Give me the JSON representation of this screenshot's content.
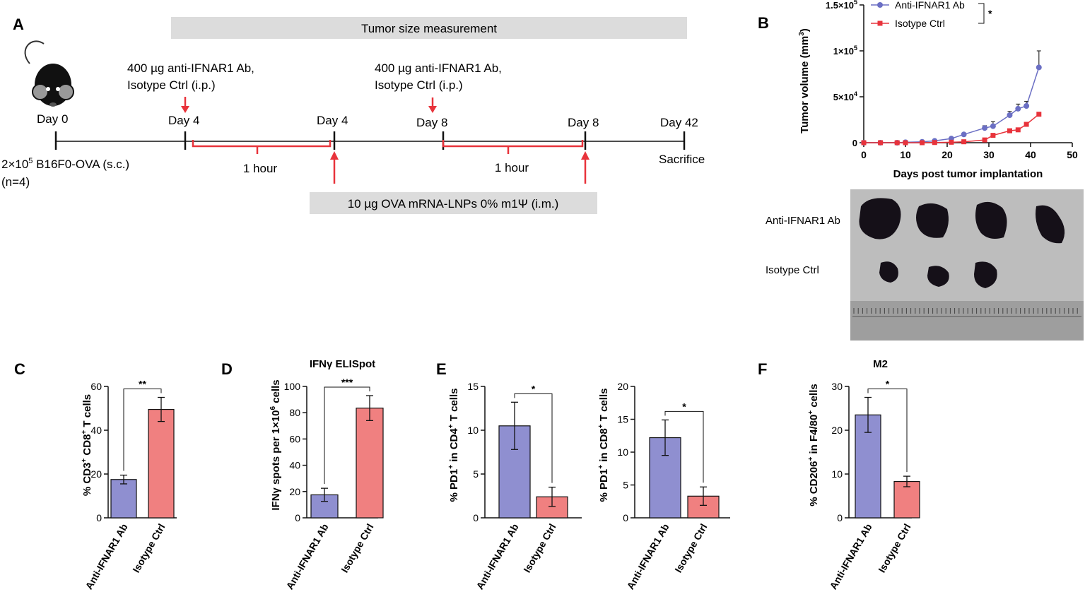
{
  "panels": {
    "A": "A",
    "B": "B",
    "C": "C",
    "D": "D",
    "E": "E",
    "F": "F"
  },
  "timeline": {
    "measure_bar": "Tumor size measurement",
    "inject_top_1": "400 µg anti-IFNAR1 Ab,",
    "inject_top_2": "Isotype Ctrl (i.p.)",
    "days": [
      "Day 0",
      "Day 4",
      "Day 4",
      "Day 8",
      "Day 8",
      "Day 42"
    ],
    "interval": "1 hour",
    "implant_1": "2×10",
    "implant_sup": "5",
    "implant_2": " B16F0-OVA (s.c.)",
    "implant_n": "(n=4)",
    "sacrifice": "Sacrifice",
    "vaccine_bar": "10 µg OVA mRNA-LNPs 0% m1Ψ (i.m.)"
  },
  "colors": {
    "blue": "#6b6fc4",
    "blue_fill": "#8f8fd0",
    "red": "#e8333b",
    "red_fill": "#f08080",
    "gray_bar": "#dcdcdc",
    "photo_bg": "#bdbdbd"
  },
  "photo": {
    "row1": "Anti-IFNAR1 Ab",
    "row2": "Isotype Ctrl"
  },
  "chart_data": [
    {
      "id": "B",
      "type": "line",
      "title": "",
      "xlabel": "Days post tumor implantation",
      "ylabel": "Tumor volume (mm3)",
      "xlim": [
        0,
        50
      ],
      "ylim": [
        0,
        150000
      ],
      "xticks": [
        "0",
        "10",
        "20",
        "30",
        "40",
        "50"
      ],
      "yticks": [
        "0",
        "5×10",
        "1×10",
        "1.5×10"
      ],
      "ytick_exp": [
        "",
        "4",
        "5",
        "5"
      ],
      "legend": [
        "Anti-IFNAR1 Ab",
        "Isotype Ctrl"
      ],
      "significance": "*",
      "series": [
        {
          "name": "Anti-IFNAR1 Ab",
          "x": [
            0,
            4,
            8,
            10,
            14,
            17,
            21,
            24,
            29,
            31,
            35,
            37,
            39,
            42
          ],
          "y": [
            0,
            0,
            0,
            500,
            1000,
            2000,
            4500,
            9000,
            16000,
            18000,
            30000,
            37000,
            40000,
            82000
          ],
          "err": [
            0,
            0,
            0,
            300,
            500,
            700,
            1000,
            1500,
            2500,
            5000,
            4000,
            5000,
            5000,
            18000
          ]
        },
        {
          "name": "Isotype Ctrl",
          "x": [
            0,
            4,
            8,
            10,
            14,
            17,
            21,
            24,
            29,
            31,
            35,
            37,
            39,
            42
          ],
          "y": [
            0,
            0,
            0,
            0,
            0,
            200,
            500,
            1000,
            3000,
            8000,
            13000,
            14000,
            20000,
            31000
          ],
          "err": [
            0,
            0,
            0,
            0,
            0,
            100,
            200,
            300,
            800,
            1500,
            1500,
            1500,
            1500,
            2000
          ]
        }
      ]
    },
    {
      "id": "C",
      "type": "bar",
      "title": "",
      "ylabel": "% CD3+ CD8+ T cells",
      "categories": [
        "Anti-IFNAR1 Ab",
        "Isotype Ctrl"
      ],
      "values": [
        17.5,
        49.5
      ],
      "err": [
        2,
        5.5
      ],
      "ylim": [
        0,
        60
      ],
      "yticks": [
        "0",
        "20",
        "40",
        "60"
      ],
      "significance": "**"
    },
    {
      "id": "D",
      "type": "bar",
      "title": "IFNγ ELISpot",
      "ylabel": "IFNγ spots per 1×10^6 cells",
      "categories": [
        "Anti-IFNAR1 Ab",
        "Isotype Ctrl"
      ],
      "values": [
        17.5,
        83.5
      ],
      "err": [
        5,
        9.5
      ],
      "ylim": [
        0,
        100
      ],
      "yticks": [
        "0",
        "20",
        "40",
        "60",
        "80",
        "100"
      ],
      "significance": "***"
    },
    {
      "id": "E1",
      "type": "bar",
      "title": "",
      "ylabel": "% PD1+ in CD4+ T cells",
      "categories": [
        "Anti-IFNAR1 Ab",
        "Isotype Ctrl"
      ],
      "values": [
        10.5,
        2.4
      ],
      "err": [
        2.7,
        1.1
      ],
      "ylim": [
        0,
        15
      ],
      "yticks": [
        "0",
        "5",
        "10",
        "15"
      ],
      "significance": "*"
    },
    {
      "id": "E2",
      "type": "bar",
      "title": "",
      "ylabel": "% PD1+ in CD8+ T cells",
      "categories": [
        "Anti-IFNAR1 Ab",
        "Isotype Ctrl"
      ],
      "values": [
        12.2,
        3.3
      ],
      "err": [
        2.7,
        1.4
      ],
      "ylim": [
        0,
        20
      ],
      "yticks": [
        "0",
        "5",
        "10",
        "15",
        "20"
      ],
      "significance": "*"
    },
    {
      "id": "F",
      "type": "bar",
      "title": "M2",
      "ylabel": "% CD206+ in F4/80+ cells",
      "categories": [
        "Anti-IFNAR1 Ab",
        "Isotype Ctrl"
      ],
      "values": [
        23.5,
        8.3
      ],
      "err": [
        4,
        1.2
      ],
      "ylim": [
        0,
        30
      ],
      "yticks": [
        "0",
        "10",
        "20",
        "30"
      ],
      "significance": "*"
    }
  ]
}
